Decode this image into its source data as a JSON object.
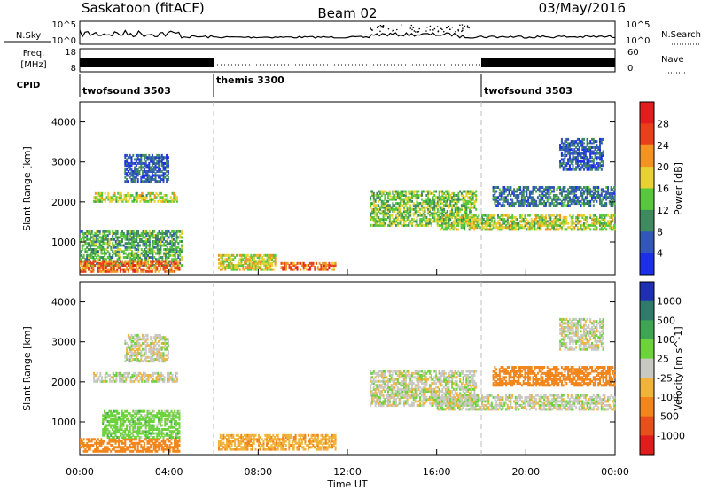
{
  "header": {
    "station": "Saskatoon (fitACF)",
    "beam": "Beam 02",
    "date": "03/May/2016"
  },
  "left_labels": {
    "nsky": "N.Sky",
    "freq_line1": "Freq.",
    "freq_line2": "[MHz]",
    "cpid": "CPID"
  },
  "right_labels": {
    "nsearch": "N.Search",
    "nave": "Nave"
  },
  "noise_axis": {
    "left": [
      "10^5",
      "10^0"
    ],
    "right": [
      "10^5",
      "10^0"
    ]
  },
  "freq_axis": {
    "left": [
      "18",
      "8"
    ],
    "right": [
      "60",
      "0"
    ]
  },
  "cpid_segments": [
    {
      "label": "twofsound 3503",
      "start_hour": 0,
      "end_hour": 6
    },
    {
      "label": "themis 3300",
      "start_hour": 6,
      "end_hour": 18
    },
    {
      "label": "twofsound 3503",
      "start_hour": 18,
      "end_hour": 24
    }
  ],
  "x_axis": {
    "label": "Time UT",
    "ticks": [
      "00:00",
      "04:00",
      "08:00",
      "12:00",
      "16:00",
      "20:00",
      "00:00"
    ]
  },
  "power_panel": {
    "ylabel": "Slant Range [km]",
    "yticks": [
      "1000",
      "2000",
      "3000",
      "4000"
    ],
    "colorbar_title": "Power [dB]",
    "colorbar_ticks": [
      "4",
      "8",
      "12",
      "16",
      "20",
      "24",
      "28"
    ],
    "colors": [
      "#1b2fe6",
      "#3357b8",
      "#3f8a5f",
      "#57c83b",
      "#e8d233",
      "#f29322",
      "#e8401b",
      "#e21d1d"
    ]
  },
  "velocity_panel": {
    "ylabel": "Slant Range [km]",
    "yticks": [
      "1000",
      "2000",
      "3000",
      "4000"
    ],
    "colorbar_title": "Velocity [m s^-1]",
    "colorbar_ticks": [
      "1000",
      "500",
      "100",
      "25",
      "-25",
      "-100",
      "-500",
      "-1000"
    ],
    "colors": [
      "#1f2fb3",
      "#2f7a6a",
      "#3ea653",
      "#6cd33b",
      "#c9c9c4",
      "#f0b43a",
      "#f2861c",
      "#e8501b",
      "#e01d1d"
    ]
  },
  "chart_data": [
    {
      "type": "heatmap",
      "name_hint": "power",
      "title": "Power [dB]",
      "xlabel": "Time UT",
      "ylabel": "Slant Range [km]",
      "xlim": [
        0,
        24
      ],
      "ylim": [
        180,
        4500
      ],
      "units": "hours UT / km / dB",
      "regions": [
        {
          "t": [
            0.6,
            4.4
          ],
          "range": [
            2000,
            2250
          ],
          "power": 16
        },
        {
          "t": [
            2.0,
            4.0
          ],
          "range": [
            2500,
            3200
          ],
          "power": 6
        },
        {
          "t": [
            0.0,
            4.6
          ],
          "range": [
            400,
            1300
          ],
          "power": 12
        },
        {
          "t": [
            0.0,
            4.5
          ],
          "range": [
            250,
            550
          ],
          "power": 24
        },
        {
          "t": [
            6.2,
            8.8
          ],
          "range": [
            300,
            700
          ],
          "power": 18
        },
        {
          "t": [
            9.0,
            11.5
          ],
          "range": [
            300,
            500
          ],
          "power": 24
        },
        {
          "t": [
            13.0,
            17.8
          ],
          "range": [
            1400,
            2300
          ],
          "power": 14
        },
        {
          "t": [
            16.0,
            24.0
          ],
          "range": [
            1300,
            1700
          ],
          "power": 16
        },
        {
          "t": [
            18.5,
            24.0
          ],
          "range": [
            1900,
            2400
          ],
          "power": 8
        },
        {
          "t": [
            21.5,
            23.5
          ],
          "range": [
            2800,
            3600
          ],
          "power": 6
        }
      ]
    },
    {
      "type": "heatmap",
      "name_hint": "velocity",
      "title": "Velocity [m s^-1]",
      "xlabel": "Time UT",
      "ylabel": "Slant Range [km]",
      "xlim": [
        0,
        24
      ],
      "ylim": [
        180,
        4500
      ],
      "units": "hours UT / km / m s^-1",
      "regions": [
        {
          "t": [
            0.6,
            4.4
          ],
          "range": [
            2000,
            2250
          ],
          "velocity": 0
        },
        {
          "t": [
            2.0,
            4.0
          ],
          "range": [
            2500,
            3200
          ],
          "velocity": 0
        },
        {
          "t": [
            0.0,
            4.5
          ],
          "range": [
            250,
            600
          ],
          "velocity": -150
        },
        {
          "t": [
            1.0,
            4.5
          ],
          "range": [
            600,
            1300
          ],
          "velocity": 60
        },
        {
          "t": [
            6.2,
            11.5
          ],
          "range": [
            300,
            700
          ],
          "velocity": -80
        },
        {
          "t": [
            13.0,
            17.8
          ],
          "range": [
            1400,
            2300
          ],
          "velocity": 0
        },
        {
          "t": [
            16.0,
            24.0
          ],
          "range": [
            1300,
            1700
          ],
          "velocity": 0
        },
        {
          "t": [
            18.5,
            24.0
          ],
          "range": [
            1900,
            2400
          ],
          "velocity": -200
        },
        {
          "t": [
            21.5,
            23.5
          ],
          "range": [
            2800,
            3600
          ],
          "velocity": 0
        }
      ]
    }
  ]
}
